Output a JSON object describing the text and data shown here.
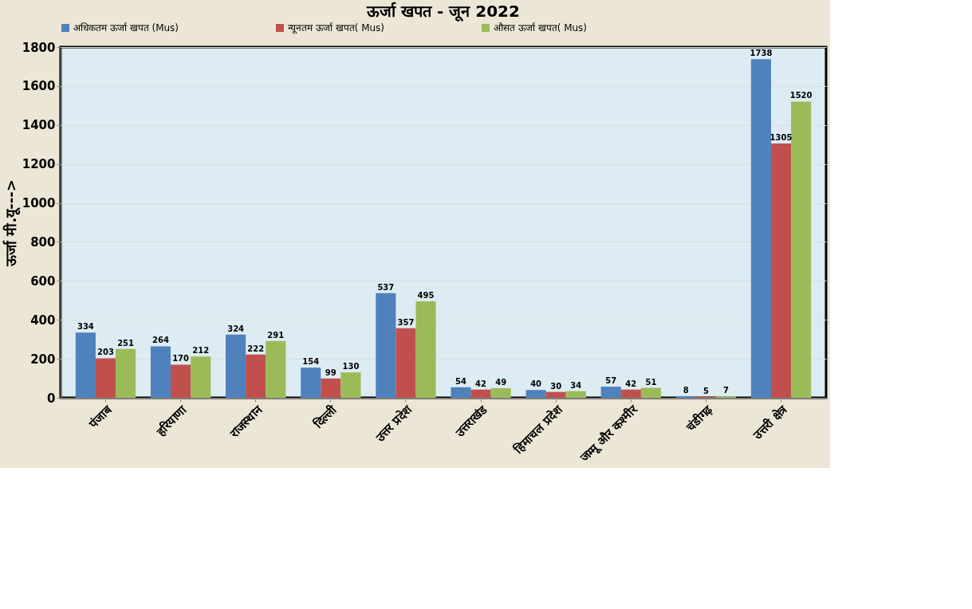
{
  "chart_data": {
    "type": "bar",
    "title": "ऊर्जा खपत - जून 2022",
    "ylabel": "ऊर्जा मी.यू--->",
    "categories": [
      "पंजाब",
      "हरियाणा",
      "राजस्थान",
      "दिल्ली",
      "उत्तर प्रदेश",
      "उत्तराखंड",
      "हिमाचल प्रदेश",
      "जम्मू और कश्मीर",
      "चंडीगढ़",
      "उत्तरी क्षेत्र"
    ],
    "series": [
      {
        "name": "अधिकतम ऊर्जा खपत (Mus)",
        "color": "#4f81bd",
        "values": [
          334,
          264,
          324,
          154,
          537,
          54,
          40,
          57,
          8,
          1738
        ]
      },
      {
        "name": "न्यूनतम ऊर्जा खपत( Mus)",
        "color": "#c0504d",
        "values": [
          203,
          170,
          222,
          99,
          357,
          42,
          30,
          42,
          5,
          1305
        ]
      },
      {
        "name": "औसत ऊर्जा खपत( Mus)",
        "color": "#9bbb59",
        "values": [
          251,
          212,
          291,
          130,
          495,
          49,
          34,
          51,
          7,
          1520
        ]
      }
    ],
    "ylim": [
      0,
      1800
    ],
    "yticks": [
      0,
      200,
      400,
      600,
      800,
      1000,
      1200,
      1400,
      1600,
      {
        "value": 1800,
        "label": "1800"
      }
    ],
    "grid": "y",
    "legend": "top",
    "data_labels": true
  }
}
